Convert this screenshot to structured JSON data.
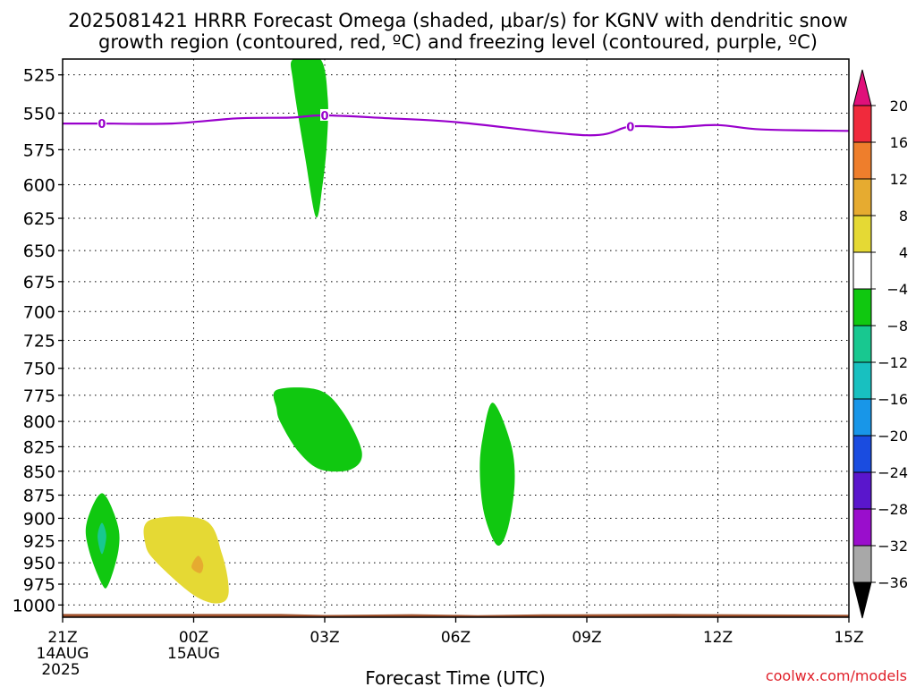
{
  "title": {
    "line1": "2025081421 HRRR Forecast Omega (shaded, μbar/s) for KGNV with dendritic snow",
    "line2": "growth region (contoured, red, ºC) and freezing level (contoured, purple, ºC)"
  },
  "watermark": "coolwx.com/models",
  "chart_data": {
    "type": "contour",
    "title": "2025081421 HRRR Forecast Omega (shaded, μbar/s) for KGNV with dendritic snow growth region (contoured, red, ºC) and freezing level (contoured, purple, ºC)",
    "xlabel": "Forecast Time (UTC)",
    "ylabel": "",
    "x_ticks": [
      {
        "hour": 0,
        "label": "21Z",
        "sub1": "14AUG",
        "sub2": "2025"
      },
      {
        "hour": 3,
        "label": "00Z",
        "sub1": "15AUG",
        "sub2": ""
      },
      {
        "hour": 6,
        "label": "03Z",
        "sub1": "",
        "sub2": ""
      },
      {
        "hour": 9,
        "label": "06Z",
        "sub1": "",
        "sub2": ""
      },
      {
        "hour": 12,
        "label": "09Z",
        "sub1": "",
        "sub2": ""
      },
      {
        "hour": 15,
        "label": "12Z",
        "sub1": "",
        "sub2": ""
      },
      {
        "hour": 18,
        "label": "15Z",
        "sub1": "",
        "sub2": ""
      }
    ],
    "xlim_hours": [
      0,
      18
    ],
    "y_ticks": [
      525,
      550,
      575,
      600,
      625,
      650,
      675,
      700,
      725,
      750,
      775,
      800,
      825,
      850,
      875,
      900,
      925,
      950,
      975,
      1000
    ],
    "ylim_hpa": [
      1015,
      515
    ],
    "y_scale": "log",
    "grid": true,
    "colorbar": {
      "labels": [
        "20",
        "16",
        "12",
        "8",
        "4",
        "−4",
        "−8",
        "−12",
        "−16",
        "−20",
        "−24",
        "−28",
        "−32",
        "−36"
      ],
      "colors": [
        "#f02a3c",
        "#ee7e2c",
        "#e6ab30",
        "#e5d934",
        "#ffffff",
        "#10c810",
        "#18c890",
        "#18c0c0",
        "#1896e8",
        "#1a4ce0",
        "#5a16cc",
        "#9a0ecc",
        "#a8a8a8"
      ],
      "top_color": "#e0107a",
      "bottom_color": "#000000"
    },
    "freezing_level": {
      "color": "#9900cc",
      "label": "0",
      "points": [
        [
          0,
          557
        ],
        [
          0.9,
          557
        ],
        [
          2.5,
          557
        ],
        [
          4.0,
          553.5
        ],
        [
          5.2,
          553
        ],
        [
          6.0,
          551.5
        ],
        [
          7.5,
          553.5
        ],
        [
          9.0,
          556
        ],
        [
          12.0,
          565
        ],
        [
          13.0,
          559
        ],
        [
          14.0,
          559.5
        ],
        [
          15.0,
          558
        ],
        [
          16.0,
          561
        ],
        [
          18.0,
          562
        ]
      ]
    },
    "omega_regions": [
      {
        "value": "-4 to -8",
        "color": "#10c810",
        "points": [
          [
            5.9,
            515
          ],
          [
            6.07,
            540
          ],
          [
            6.05,
            570
          ],
          [
            5.95,
            600
          ],
          [
            5.8,
            624
          ],
          [
            5.55,
            580
          ],
          [
            5.28,
            530
          ],
          [
            5.28,
            515
          ]
        ]
      },
      {
        "value": "-4 to -8",
        "color": "#10c810",
        "points": [
          [
            4.9,
            770
          ],
          [
            5.85,
            770
          ],
          [
            6.4,
            790
          ],
          [
            6.85,
            830
          ],
          [
            6.6,
            848
          ],
          [
            5.9,
            848
          ],
          [
            5.4,
            830
          ],
          [
            5.0,
            802
          ],
          [
            4.9,
            788
          ]
        ]
      },
      {
        "value": "-4 to -8",
        "color": "#10c810",
        "points": [
          [
            9.85,
            782
          ],
          [
            10.25,
            820
          ],
          [
            10.35,
            860
          ],
          [
            10.2,
            910
          ],
          [
            9.95,
            930
          ],
          [
            9.65,
            895
          ],
          [
            9.55,
            850
          ],
          [
            9.62,
            815
          ]
        ]
      },
      {
        "value": "-4 to -8",
        "color": "#10c810",
        "points": [
          [
            0.9,
            873
          ],
          [
            1.25,
            905
          ],
          [
            1.28,
            935
          ],
          [
            1.05,
            975
          ],
          [
            0.9,
            975
          ],
          [
            0.6,
            935
          ],
          [
            0.55,
            905
          ]
        ]
      },
      {
        "value": "-8 to -12",
        "color": "#18c890",
        "points": [
          [
            0.9,
            905
          ],
          [
            1.0,
            920
          ],
          [
            0.9,
            940
          ],
          [
            0.8,
            920
          ]
        ]
      },
      {
        "value": "4 to 8",
        "color": "#e5d934",
        "points": [
          [
            2.0,
            902
          ],
          [
            3.25,
            902
          ],
          [
            3.65,
            940
          ],
          [
            3.8,
            985
          ],
          [
            3.55,
            998
          ],
          [
            3.0,
            988
          ],
          [
            2.2,
            952
          ],
          [
            1.9,
            930
          ]
        ]
      },
      {
        "value": "8 to 12",
        "color": "#e6ab30",
        "points": [
          [
            3.1,
            942
          ],
          [
            3.22,
            952
          ],
          [
            3.15,
            962
          ],
          [
            2.95,
            955
          ]
        ]
      }
    ],
    "terrain": {
      "color": "#a0522d",
      "surface_hpa": [
        [
          0,
          1011
        ],
        [
          5.0,
          1011
        ],
        [
          6.0,
          1012.2
        ],
        [
          8.0,
          1011.3
        ],
        [
          9.5,
          1012.5
        ],
        [
          11.0,
          1011.5
        ],
        [
          14.0,
          1011
        ],
        [
          18.0,
          1012
        ]
      ]
    }
  }
}
